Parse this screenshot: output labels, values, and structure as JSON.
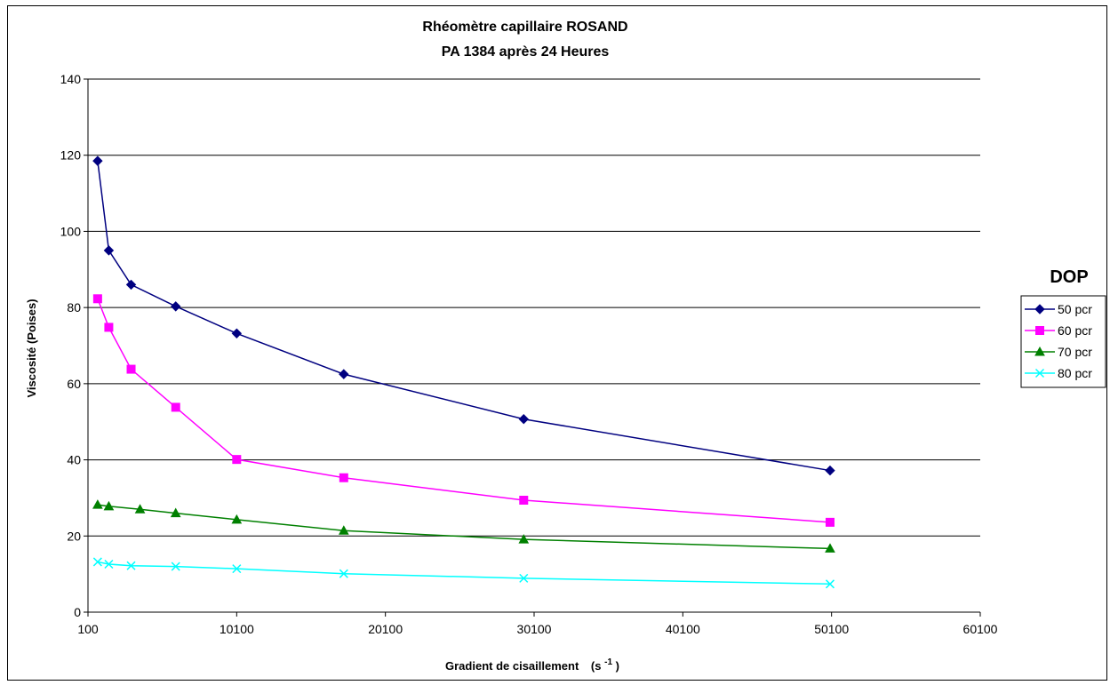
{
  "chart_data": {
    "type": "line",
    "title": "Rhéomètre capillaire ROSAND",
    "subtitle": "PA 1384 après 24 Heures",
    "xlabel": "Gradient de cisaillement",
    "xlabel_unit_base": "(s",
    "xlabel_unit_exp": "-1",
    "xlabel_unit_close": ")",
    "ylabel": "Viscosité (Poises)",
    "xlim": [
      100,
      60100
    ],
    "ylim": [
      0,
      140
    ],
    "x_ticks": [
      100,
      10100,
      20100,
      30100,
      40100,
      50100,
      60100
    ],
    "y_ticks": [
      0,
      20,
      40,
      60,
      80,
      100,
      120,
      140
    ],
    "x_tick_labels": [
      "100",
      "10100",
      "20100",
      "30100",
      "40100",
      "50100",
      "60100"
    ],
    "y_tick_labels": [
      "0",
      "20",
      "40",
      "60",
      "80",
      "100",
      "120",
      "140"
    ],
    "grid": "horizontal",
    "legend": {
      "title": "DOP",
      "position": "right"
    },
    "series": [
      {
        "name": "50 pcr",
        "color": "#000080",
        "marker": "diamond",
        "points": [
          [
            750,
            118.5
          ],
          [
            1500,
            95
          ],
          [
            3000,
            86
          ],
          [
            6000,
            80.3
          ],
          [
            10100,
            73.2
          ],
          [
            17300,
            62.5
          ],
          [
            29400,
            50.7
          ],
          [
            50000,
            37.2
          ]
        ]
      },
      {
        "name": "60 pcr",
        "color": "#FF00FF",
        "marker": "square",
        "points": [
          [
            750,
            82.3
          ],
          [
            1500,
            74.8
          ],
          [
            3000,
            63.8
          ],
          [
            6000,
            53.8
          ],
          [
            10100,
            40.1
          ],
          [
            17300,
            35.3
          ],
          [
            29400,
            29.4
          ],
          [
            50000,
            23.6
          ]
        ]
      },
      {
        "name": "70 pcr",
        "color": "#008000",
        "marker": "triangle",
        "points": [
          [
            750,
            28.2
          ],
          [
            1500,
            27.8
          ],
          [
            3600,
            27
          ],
          [
            6000,
            26
          ],
          [
            10100,
            24.3
          ],
          [
            17300,
            21.4
          ],
          [
            29400,
            19.1
          ],
          [
            50000,
            16.7
          ]
        ]
      },
      {
        "name": "80 pcr",
        "color": "#00FFFF",
        "marker": "x",
        "points": [
          [
            750,
            13.2
          ],
          [
            1500,
            12.6
          ],
          [
            3000,
            12.2
          ],
          [
            6000,
            12
          ],
          [
            10100,
            11.4
          ],
          [
            17300,
            10.1
          ],
          [
            29400,
            8.9
          ],
          [
            50000,
            7.4
          ]
        ]
      }
    ]
  }
}
